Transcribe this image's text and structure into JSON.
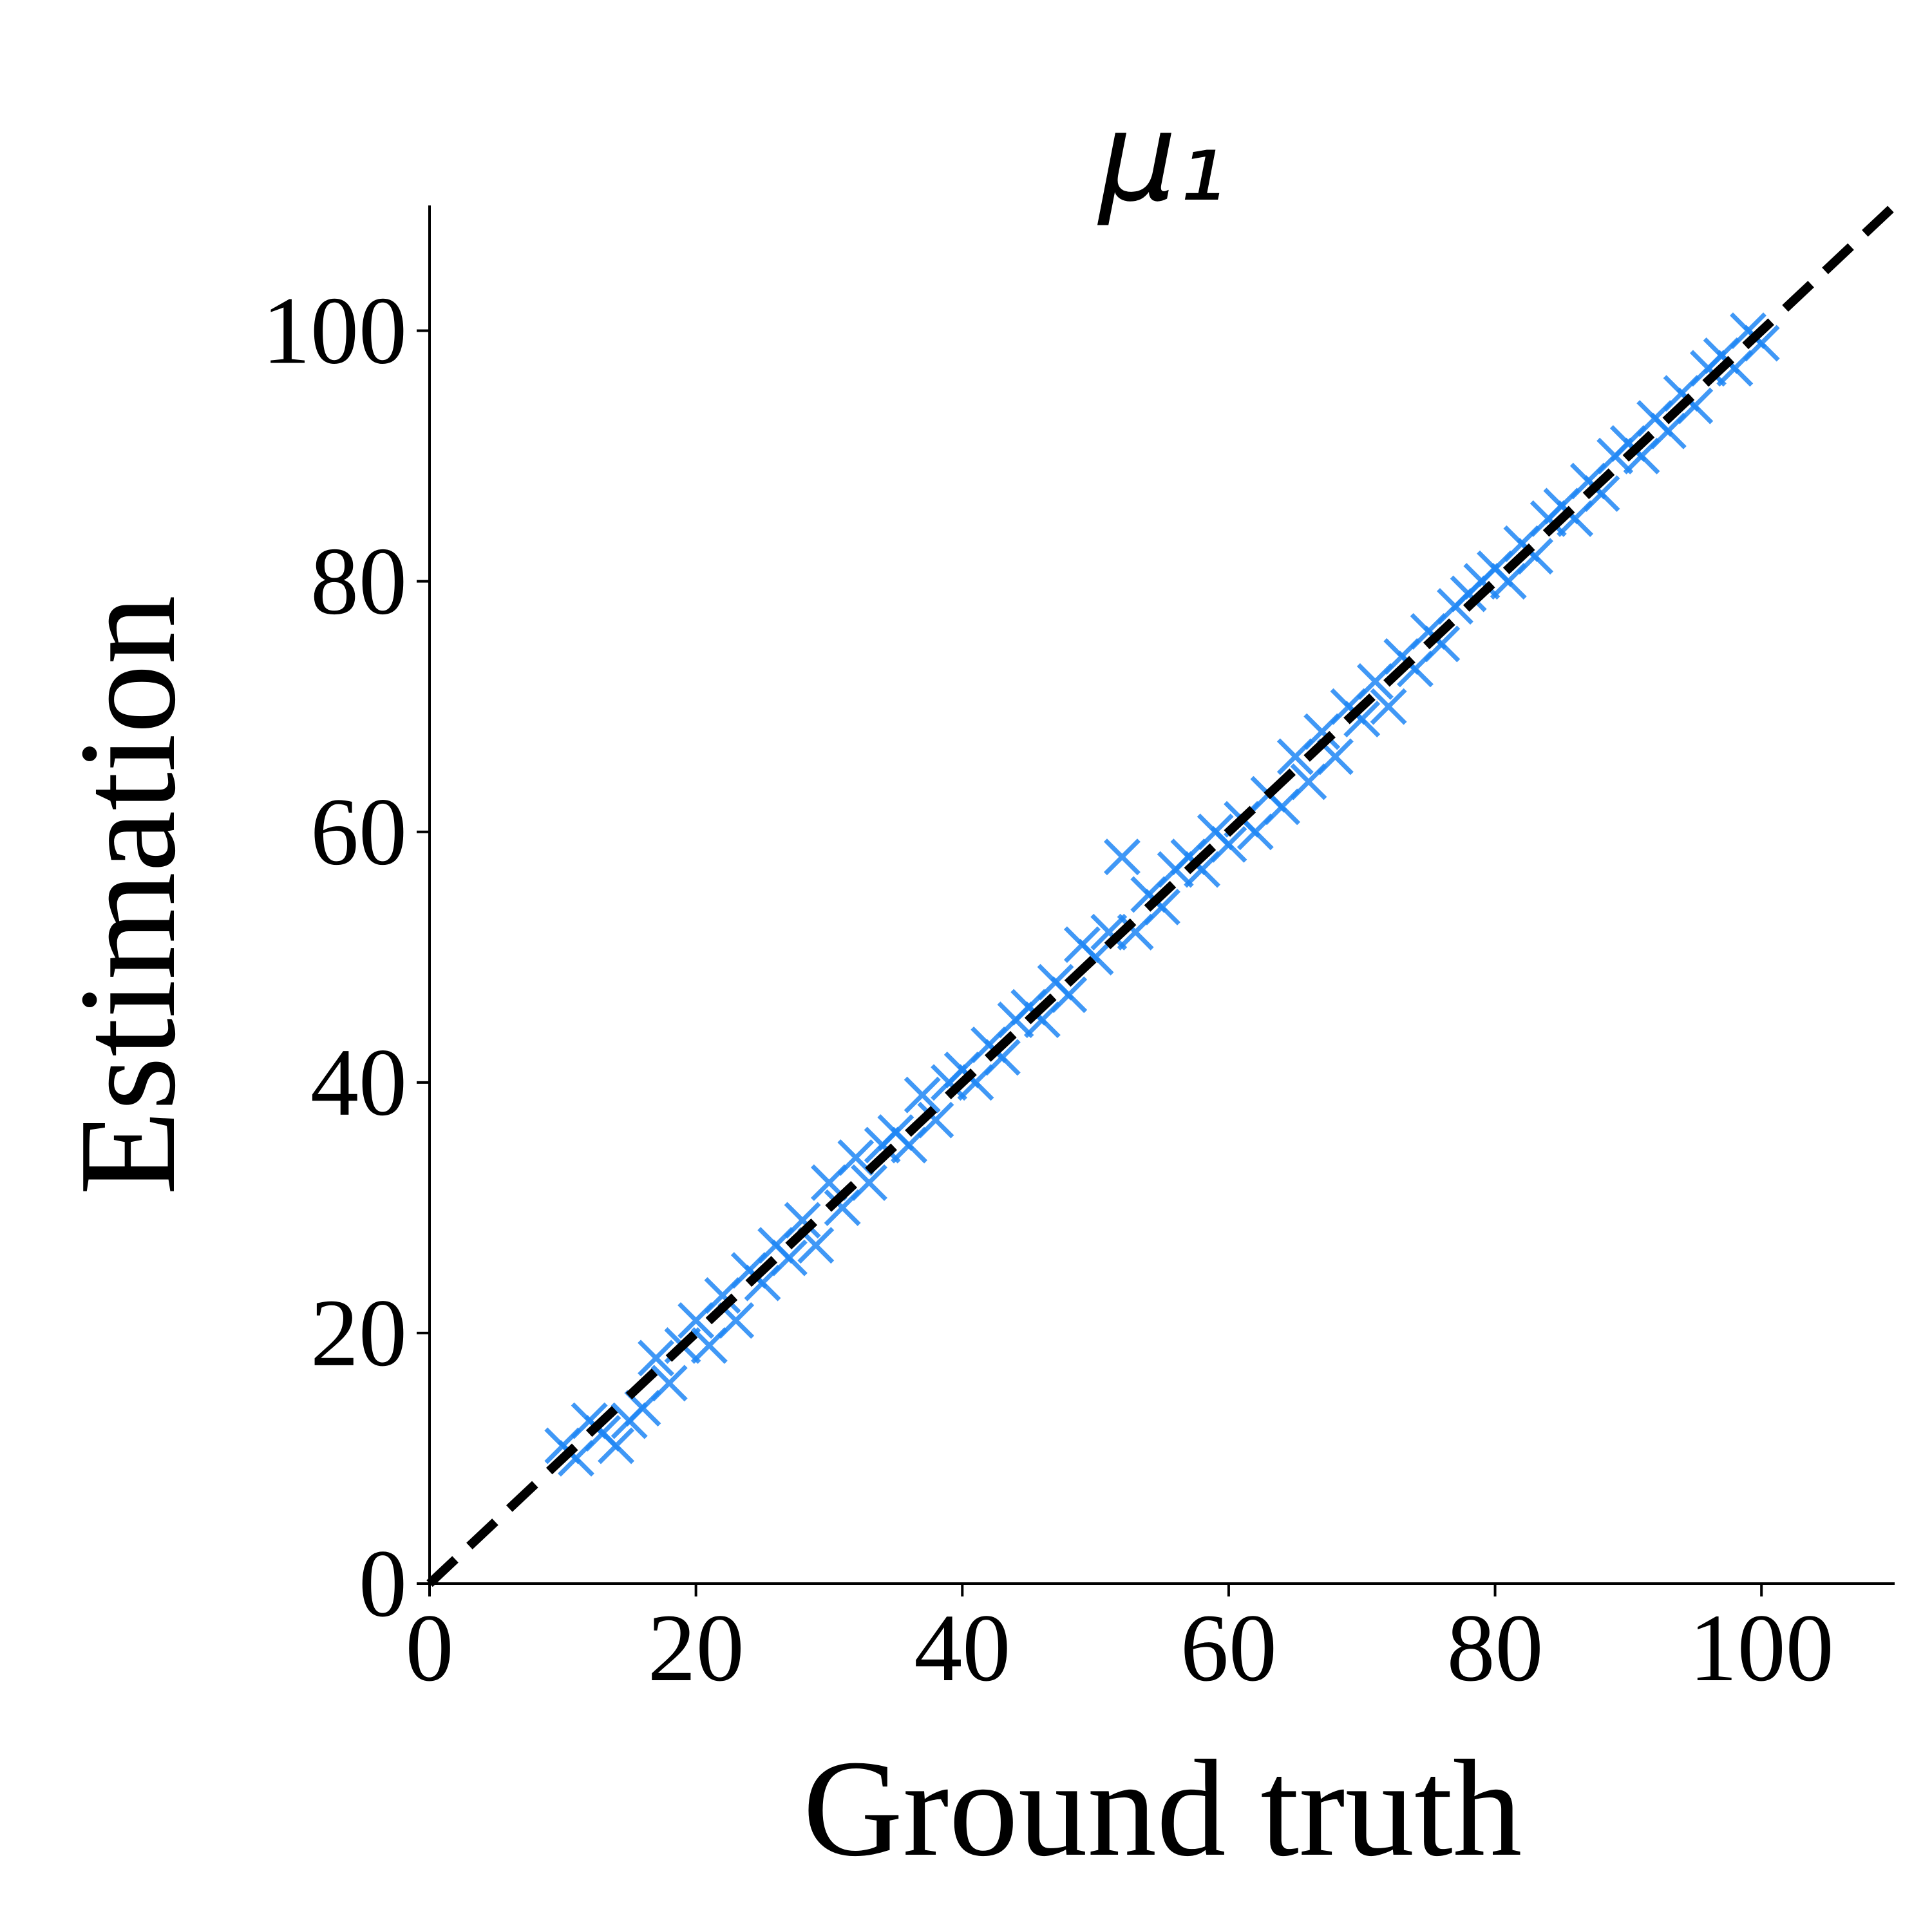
{
  "chart_data": {
    "type": "scatter",
    "title": "μ₁",
    "xlabel": "Ground truth",
    "ylabel": "Estimation",
    "xlim": [
      0,
      110
    ],
    "ylim": [
      0,
      110
    ],
    "xticks": [
      0,
      20,
      40,
      60,
      80,
      100
    ],
    "yticks": [
      0,
      20,
      40,
      60,
      80,
      100
    ],
    "marker": "x",
    "identity_line": true,
    "identity_line_color": "#000000",
    "series": [
      {
        "color": "#1e86f5",
        "x": [
          10,
          11,
          12,
          13,
          14,
          15,
          16,
          17,
          18,
          19,
          20,
          21,
          22,
          23,
          24,
          25,
          26,
          27,
          28,
          29,
          30,
          31,
          32,
          33,
          34,
          35,
          36,
          37,
          38,
          39,
          40,
          41,
          42,
          43,
          44,
          45,
          46,
          47,
          48,
          49,
          50,
          51,
          52,
          53,
          54,
          55,
          56,
          57,
          58,
          59,
          60,
          61,
          62,
          63,
          64,
          65,
          66,
          67,
          68,
          69,
          70,
          71,
          72,
          73,
          74,
          75,
          76,
          77,
          78,
          79,
          80,
          81,
          82,
          83,
          84,
          85,
          86,
          87,
          88,
          89,
          90,
          91,
          92,
          93,
          94,
          95,
          96,
          97,
          98,
          99,
          100
        ],
        "values": [
          11,
          10,
          13,
          12,
          11,
          13,
          14,
          18,
          16,
          19,
          21,
          19,
          23,
          21,
          25,
          24,
          27,
          26,
          29,
          27,
          32,
          30,
          34,
          32,
          35,
          36,
          35,
          39,
          37,
          40,
          41,
          40,
          43,
          42,
          45,
          46,
          45,
          48,
          47,
          51,
          50,
          52,
          58,
          52,
          55,
          54,
          57,
          58,
          57,
          60,
          59,
          61,
          60,
          63,
          62,
          66,
          64,
          68,
          66,
          70,
          69,
          72,
          70,
          74,
          73,
          76,
          75,
          78,
          79,
          80,
          81,
          80,
          83,
          82,
          85,
          86,
          85,
          88,
          87,
          90,
          91,
          90,
          93,
          92,
          95,
          94,
          97,
          98,
          97,
          100,
          99
        ]
      }
    ]
  }
}
